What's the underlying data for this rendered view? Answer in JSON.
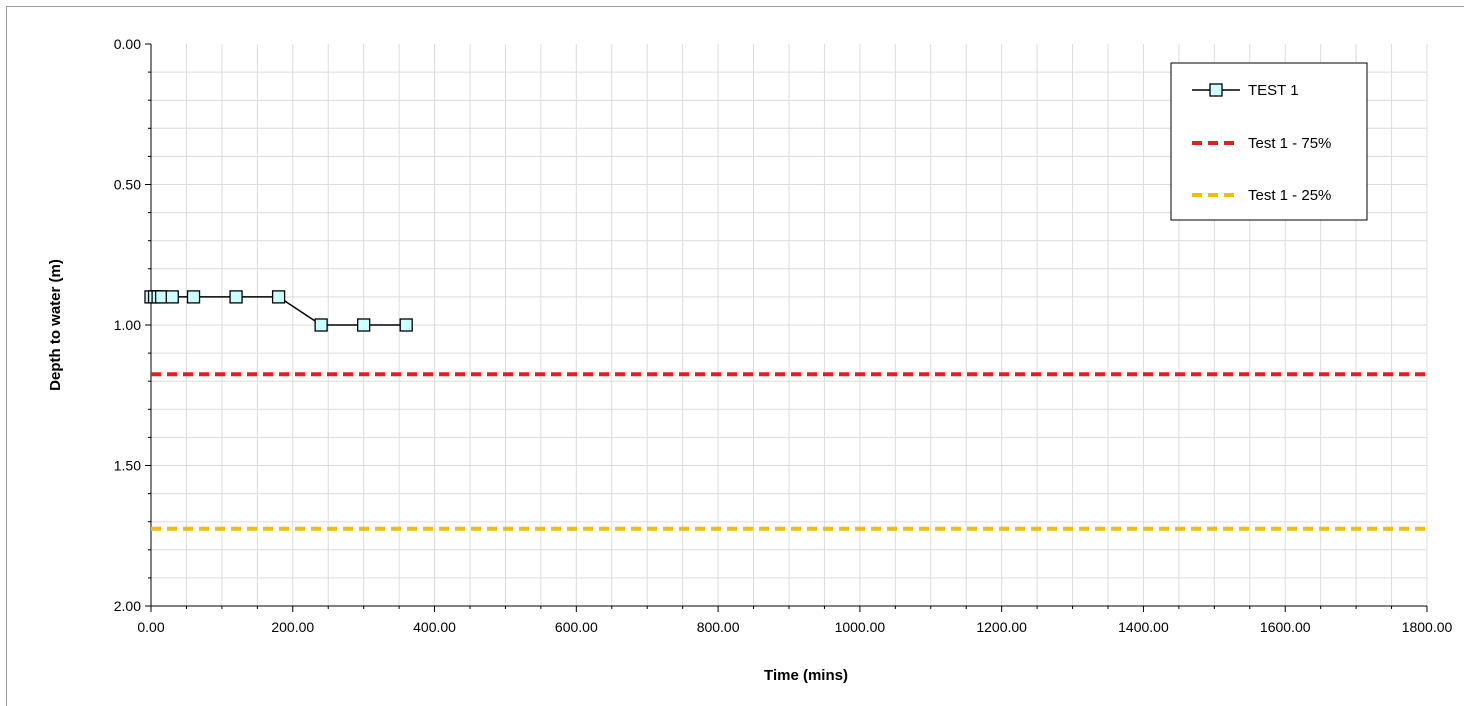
{
  "chart_data": {
    "type": "line",
    "title": "",
    "xlabel": "Time (mins)",
    "ylabel": "Depth to water (m)",
    "xlim": [
      0,
      1800
    ],
    "ylim": [
      0,
      2
    ],
    "y_inverted": true,
    "x_ticks": [
      0,
      200,
      400,
      600,
      800,
      1000,
      1200,
      1400,
      1600,
      1800
    ],
    "x_tick_labels": [
      "0.00",
      "200.00",
      "400.00",
      "600.00",
      "800.00",
      "1000.00",
      "1200.00",
      "1400.00",
      "1600.00",
      "1800.00"
    ],
    "y_ticks": [
      0,
      0.5,
      1.0,
      1.5,
      2.0
    ],
    "y_tick_labels": [
      "0.00",
      "0.50",
      "1.00",
      "1.50",
      "2.00"
    ],
    "grid": true,
    "legend_position": "top-right",
    "series": [
      {
        "name": "TEST 1",
        "style": "line-with-square-markers",
        "color": "#000000",
        "marker_fill": "#ccffff",
        "x": [
          0,
          5,
          10,
          15,
          30,
          60,
          120,
          180,
          240,
          300,
          360
        ],
        "y": [
          0.9,
          0.9,
          0.9,
          0.9,
          0.9,
          0.9,
          0.9,
          0.9,
          1.0,
          1.0,
          1.0
        ]
      },
      {
        "name": "Test 1 - 75%",
        "style": "dashed",
        "color": "#e61e1e",
        "x": [
          0,
          1800
        ],
        "y": [
          1.175,
          1.175
        ]
      },
      {
        "name": "Test 1 - 25%",
        "style": "dashed",
        "color": "#f2bc00",
        "x": [
          0,
          1800
        ],
        "y": [
          1.725,
          1.725
        ]
      }
    ]
  }
}
